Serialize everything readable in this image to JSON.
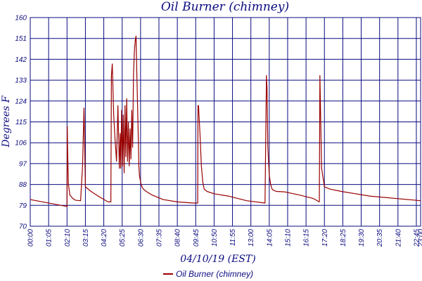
{
  "chart_data": {
    "type": "line",
    "title": "Oil Burner (chimney)",
    "xlabel": "04/10/19 (EST)",
    "ylabel": "Degrees F",
    "ylim": [
      70,
      160
    ],
    "xlim": [
      0,
      1380
    ],
    "y_ticks": [
      "70",
      "79",
      "88",
      "97",
      "106",
      "115",
      "124",
      "133",
      "142",
      "151",
      "160"
    ],
    "y_tick_values": [
      70,
      79,
      88,
      97,
      106,
      115,
      124,
      133,
      142,
      151,
      160
    ],
    "x_ticks": [
      "00:00",
      "01:05",
      "02:10",
      "03:15",
      "04:20",
      "05:25",
      "06:30",
      "07:35",
      "08:40",
      "09:45",
      "10:50",
      "11:55",
      "13:00",
      "14:05",
      "15:10",
      "16:15",
      "17:20",
      "18:25",
      "19:30",
      "20:35",
      "21:40",
      "22:45",
      "23:00"
    ],
    "x_tick_values": [
      0,
      65,
      130,
      195,
      260,
      325,
      390,
      455,
      520,
      585,
      650,
      715,
      780,
      845,
      910,
      975,
      1040,
      1105,
      1170,
      1235,
      1300,
      1365,
      1380
    ],
    "grid": true,
    "legend_position": "bottom-center",
    "series": [
      {
        "name": "Oil Burner (chimney)",
        "color": "#990000",
        "x": [
          0,
          130,
          131,
          132,
          135,
          140,
          150,
          160,
          178,
          185,
          190,
          195,
          215,
          240,
          275,
          285,
          287,
          290,
          295,
          300,
          305,
          310,
          315,
          318,
          320,
          323,
          326,
          329,
          332,
          335,
          338,
          341,
          344,
          347,
          350,
          353,
          356,
          359,
          362,
          365,
          368,
          371,
          374,
          377,
          382,
          384,
          386,
          390,
          395,
          400,
          410,
          430,
          470,
          520,
          575,
          592,
          593,
          595,
          600,
          605,
          610,
          615,
          625,
          650,
          700,
          765,
          830,
          835,
          837,
          840,
          845,
          850,
          855,
          860,
          870,
          900,
          950,
          1000,
          1022,
          1024,
          1027,
          1030,
          1040,
          1060,
          1100,
          1150,
          1200,
          1380
        ],
        "y": [
          81.5,
          78.5,
          113,
          104,
          88,
          83.5,
          82,
          81.2,
          81,
          96,
          121,
          87,
          85,
          83,
          80.5,
          80.5,
          135,
          140,
          118,
          107,
          98,
          122,
          95,
          110,
          95,
          120,
          96,
          118,
          93,
          122,
          100,
          125,
          98,
          115,
          96,
          112,
          99,
          120,
          104,
          135,
          145,
          150,
          152,
          135,
          108,
          96,
          92,
          89,
          87,
          86,
          85,
          83.5,
          81.5,
          80.5,
          80,
          80,
          122,
          122,
          110,
          96,
          89,
          86,
          85,
          84,
          83,
          81,
          80,
          135,
          130,
          104,
          92,
          88,
          86,
          85.5,
          85,
          84.8,
          83.5,
          82,
          80.5,
          135,
          115,
          95,
          87,
          86,
          85,
          84,
          83,
          81
        ]
      }
    ]
  }
}
